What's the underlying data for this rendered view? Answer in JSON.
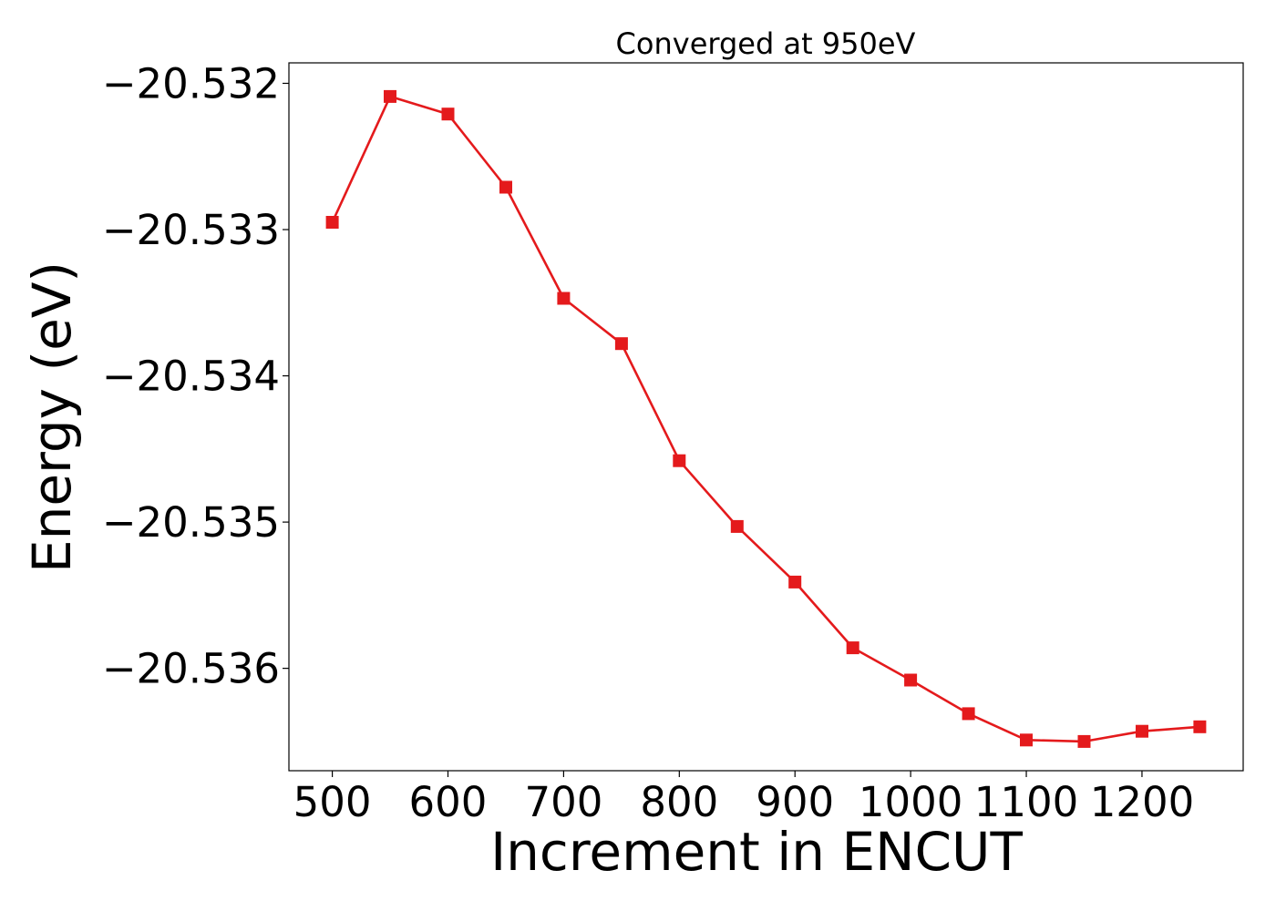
{
  "chart_data": {
    "type": "line",
    "title": "Converged at 950eV",
    "xlabel": "Increment in ENCUT",
    "ylabel": "Energy (eV)",
    "x": [
      500,
      550,
      600,
      650,
      700,
      750,
      800,
      850,
      900,
      950,
      1000,
      1050,
      1100,
      1150,
      1200,
      1250
    ],
    "series": [
      {
        "name": "",
        "values": [
          -20.53295,
          -20.53209,
          -20.53221,
          -20.53271,
          -20.53347,
          -20.53378,
          -20.53458,
          -20.53503,
          -20.53541,
          -20.53586,
          -20.53608,
          -20.53631,
          -20.53649,
          -20.5365,
          -20.53643,
          -20.5364
        ],
        "color": "#e41a1c",
        "marker": "square"
      }
    ],
    "xticks": [
      500,
      600,
      700,
      800,
      900,
      1000,
      1100,
      1200
    ],
    "xtick_labels": [
      "500",
      "600",
      "700",
      "800",
      "900",
      "1000",
      "1100",
      "1200"
    ],
    "yticks": [
      -20.532,
      -20.533,
      -20.534,
      -20.535,
      -20.536
    ],
    "ytick_labels": [
      "−20.532",
      "−20.533",
      "−20.534",
      "−20.535",
      "−20.536"
    ],
    "xlim": [
      462.5,
      1287.5
    ],
    "ylim": [
      -20.5367,
      -20.53186
    ],
    "grid": false,
    "legend": "none"
  }
}
